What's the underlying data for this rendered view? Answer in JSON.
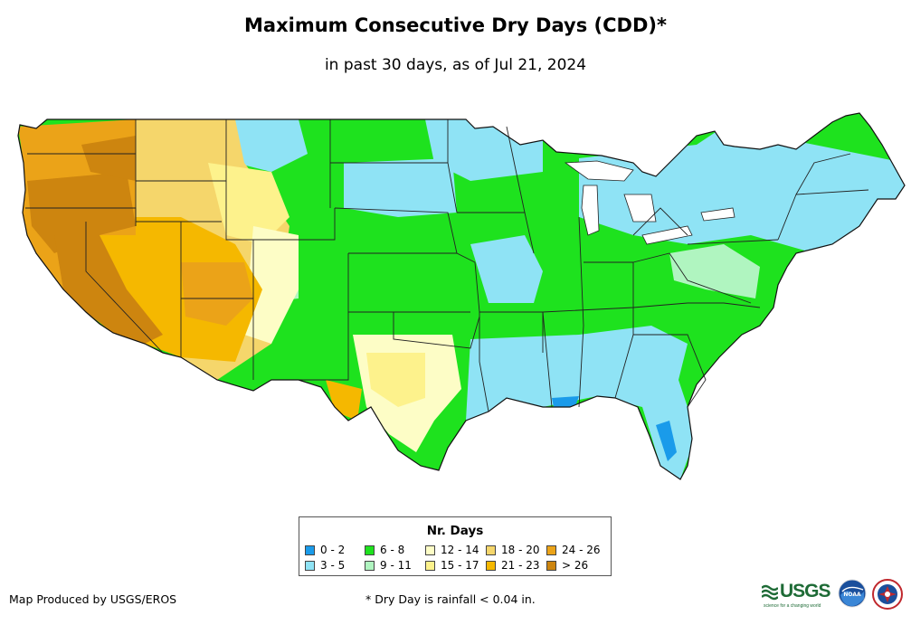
{
  "title": "Maximum Consecutive Dry Days (CDD)*",
  "subtitle": "in past 30 days, as of Jul 21, 2024",
  "legend": {
    "title": "Nr. Days",
    "items": [
      {
        "label": "0 - 2",
        "color": "#1a9bea"
      },
      {
        "label": "3 - 5",
        "color": "#8fe3f5"
      },
      {
        "label": "6 - 8",
        "color": "#1ee21e"
      },
      {
        "label": "9 - 11",
        "color": "#b0f5c0"
      },
      {
        "label": "12 - 14",
        "color": "#fdfdc6"
      },
      {
        "label": "15 - 17",
        "color": "#fdf28c"
      },
      {
        "label": "18 - 20",
        "color": "#f5d66b"
      },
      {
        "label": "21 - 23",
        "color": "#f5b800"
      },
      {
        "label": "24 - 26",
        "color": "#eba318"
      },
      {
        "label": "> 26",
        "color": "#cd850f"
      }
    ]
  },
  "credit": "Map Produced by USGS/EROS",
  "footnote": "* Dry Day is rainfall < 0.04 in.",
  "logos": {
    "usgs": "USGS",
    "usgs_tagline": "science for a changing world",
    "noaa": "NOAA"
  }
}
